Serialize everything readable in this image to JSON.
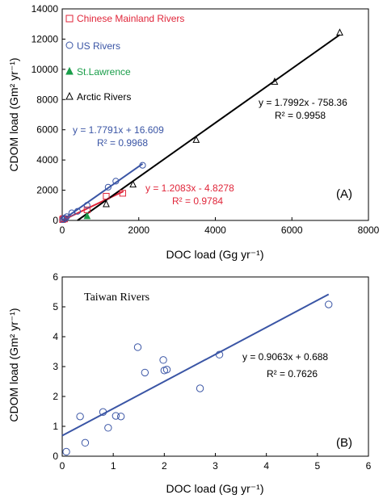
{
  "chart_data": [
    {
      "type": "scatter",
      "panel_label": "(A)",
      "xlabel": "DOC load (Gg yr⁻¹)",
      "ylabel": "CDOM load (Gm² yr⁻¹)",
      "xlim": [
        0,
        8000
      ],
      "ylim": [
        0,
        14000
      ],
      "xticks": [
        "0",
        "2000",
        "4000",
        "6000",
        "8000"
      ],
      "yticks": [
        "0",
        "2000",
        "4000",
        "6000",
        "8000",
        "10000",
        "12000",
        "14000"
      ],
      "legend_position": "top-left",
      "series": [
        {
          "name": "Chinese Mainland Rivers",
          "marker": "square",
          "color": "#e0263a",
          "points": [
            [
              10,
              60
            ],
            [
              30,
              120
            ],
            [
              60,
              100
            ],
            [
              1150,
              1600
            ],
            [
              1580,
              1800
            ],
            [
              650,
              700
            ]
          ],
          "fit": {
            "slope": 1.2083,
            "intercept": -4.8278,
            "x_range": [
              0,
              1600
            ]
          },
          "equation": "y = 1.2083x - 4.8278",
          "r2": "R² = 0.9784"
        },
        {
          "name": "US Rivers",
          "marker": "circle",
          "color": "#3a55a5",
          "points": [
            [
              20,
              50
            ],
            [
              50,
              150
            ],
            [
              80,
              120
            ],
            [
              120,
              250
            ],
            [
              250,
              500
            ],
            [
              400,
              600
            ],
            [
              650,
              1000
            ],
            [
              1200,
              2200
            ],
            [
              1400,
              2600
            ],
            [
              2100,
              3650
            ]
          ],
          "fit": {
            "slope": 1.7791,
            "intercept": 16.609,
            "x_range": [
              0,
              2100
            ]
          },
          "equation": "y = 1.7791x + 16.609",
          "r2": "R² = 0.9968"
        },
        {
          "name": "St.Lawrence",
          "marker": "triangle-filled",
          "color": "#1a9e4a",
          "points": [
            [
              650,
              250
            ]
          ]
        },
        {
          "name": "Arctic Rivers",
          "marker": "triangle-open",
          "color": "#000000",
          "points": [
            [
              1150,
              1050
            ],
            [
              1850,
              2350
            ],
            [
              3500,
              5300
            ],
            [
              5550,
              9150
            ],
            [
              7250,
              12400
            ]
          ],
          "fit": {
            "slope": 1.7992,
            "intercept": -758.36,
            "x_range": [
              400,
              7250
            ]
          },
          "equation": "y = 1.7992x - 758.36",
          "r2": "R² = 0.9958"
        }
      ]
    },
    {
      "type": "scatter",
      "panel_label": "(B)",
      "annotation": "Taiwan Rivers",
      "xlabel": "DOC load (Gg yr⁻¹)",
      "ylabel": "CDOM load (Gm² yr⁻¹)",
      "xlim": [
        0,
        6
      ],
      "ylim": [
        0,
        6
      ],
      "xticks": [
        "0",
        "1",
        "2",
        "3",
        "4",
        "5",
        "6"
      ],
      "yticks": [
        "0",
        "1",
        "2",
        "3",
        "4",
        "5",
        "6"
      ],
      "series": [
        {
          "marker": "circle",
          "color": "#3a55a5",
          "points": [
            [
              0.08,
              0.15
            ],
            [
              0.35,
              1.33
            ],
            [
              0.45,
              0.45
            ],
            [
              0.8,
              1.48
            ],
            [
              0.9,
              0.95
            ],
            [
              1.05,
              1.35
            ],
            [
              1.15,
              1.33
            ],
            [
              1.48,
              3.65
            ],
            [
              1.62,
              2.8
            ],
            [
              1.98,
              3.22
            ],
            [
              2.0,
              2.87
            ],
            [
              2.05,
              2.9
            ],
            [
              2.7,
              2.27
            ],
            [
              3.08,
              3.4
            ],
            [
              5.22,
              5.08
            ]
          ],
          "fit": {
            "slope": 0.9063,
            "intercept": 0.688,
            "x_range": [
              0.0,
              5.22
            ]
          },
          "equation": "y = 0.9063x + 0.688",
          "r2": "R² = 0.7626"
        }
      ]
    }
  ]
}
